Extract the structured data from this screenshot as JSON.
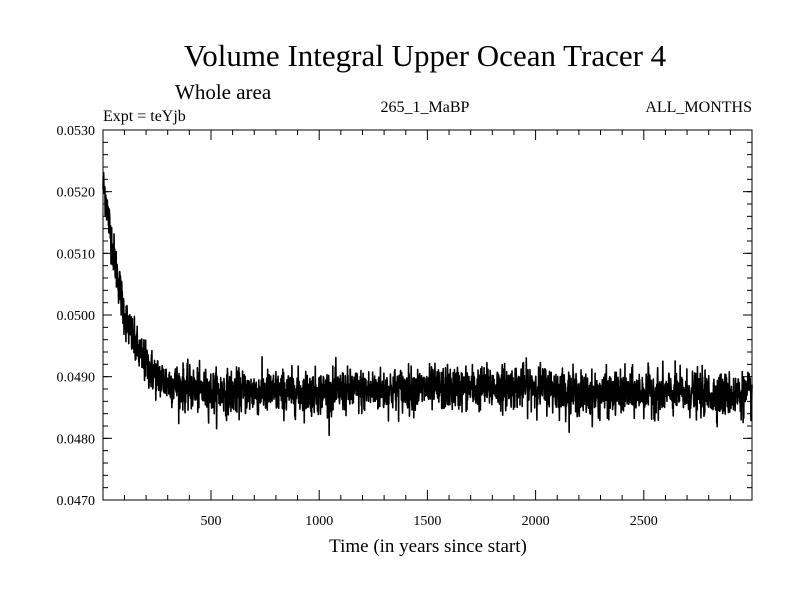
{
  "chart_data": {
    "type": "line",
    "title": "Volume Integral Upper Ocean Tracer 4",
    "subtitle": "Whole area",
    "expt_label": "Expt = teYjb",
    "center_label": "265_1_MaBP",
    "right_label": "ALL_MONTHS",
    "xlabel": "Time (in years since start)",
    "ylabel": "",
    "xlim": [
      1,
      3000
    ],
    "ylim": [
      0.047,
      0.053
    ],
    "x_ticks": [
      500,
      1000,
      1500,
      2000,
      2500
    ],
    "y_ticks": [
      "0.0470",
      "0.0480",
      "0.0490",
      "0.0500",
      "0.0510",
      "0.0520",
      "0.0530"
    ],
    "x_minor_step": 100,
    "y_minor_step": 0.0002,
    "series": [
      {
        "name": "Volume Integral Upper Ocean Tracer 4",
        "color": "#000000",
        "n_points": 3000,
        "x_start": 1,
        "x_step": 1,
        "mean_curve": {
          "x": [
            1,
            10,
            25,
            50,
            75,
            100,
            150,
            200,
            250,
            300,
            400,
            500,
            700,
            1000,
            1500,
            2000,
            2250,
            2500,
            3000
          ],
          "y": [
            0.0521,
            0.052,
            0.0516,
            0.051,
            0.0505,
            0.05,
            0.0495,
            0.0492,
            0.049,
            0.0489,
            0.0488,
            0.04875,
            0.04875,
            0.04875,
            0.0488,
            0.04885,
            0.0487,
            0.04875,
            0.0487
          ]
        },
        "noise_amplitude": 0.00035,
        "max": 0.05255,
        "min": 0.04775
      }
    ]
  }
}
